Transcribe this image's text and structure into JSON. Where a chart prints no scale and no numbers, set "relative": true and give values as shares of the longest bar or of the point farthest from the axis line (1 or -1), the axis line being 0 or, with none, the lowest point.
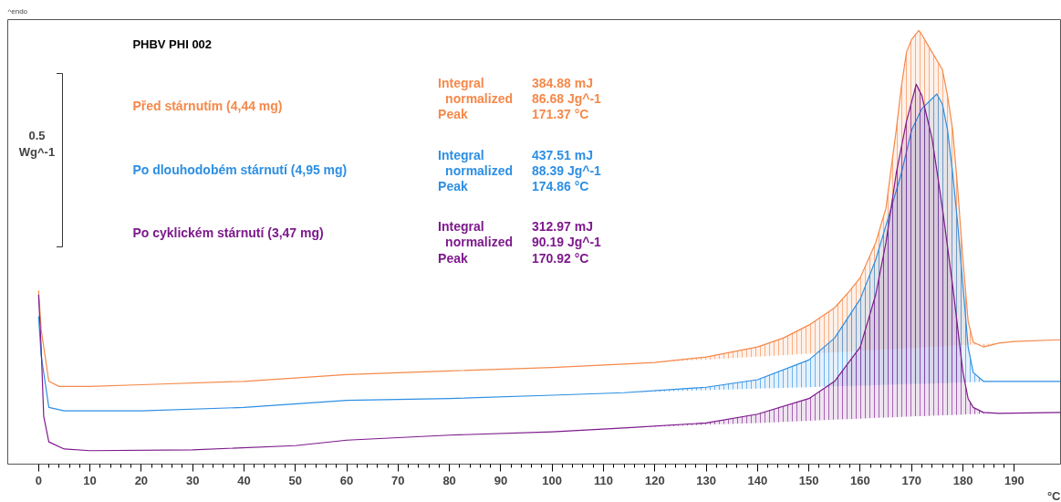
{
  "chart_data": {
    "type": "line",
    "relative": true,
    "title": "PHBV PHI 002",
    "xlabel": "°C",
    "xlim": [
      -6,
      199
    ],
    "xticks": [
      0,
      10,
      20,
      30,
      40,
      50,
      60,
      70,
      80,
      90,
      100,
      110,
      120,
      130,
      140,
      150,
      160,
      170,
      180,
      190
    ],
    "grid": false,
    "annotations": [
      "^endo",
      "0.5\nWg^-1",
      "Integral\t384.88 mJ\nnormalized\t86.68 Jg^-1\nPeak\t171.37 °C",
      "Integral\t437.51 mJ\nnormalized\t88.39 Jg^-1\nPeak\t174.86 °C",
      "Integral\t312.97 mJ\nnormalized\t90.19 Jg^-1\nPeak\t170.92 °C"
    ],
    "series": [
      {
        "name": "Před stárnutím (4,44 mg)",
        "color": "#f5894a",
        "x": [
          0,
          0.5,
          2,
          4,
          10,
          20,
          40,
          60,
          80,
          100,
          114,
          120,
          130,
          140,
          145,
          150,
          155,
          158,
          160,
          163,
          165,
          167,
          168,
          169,
          170,
          171.4,
          172,
          174,
          176,
          177,
          178,
          179,
          180,
          181,
          182,
          184,
          187,
          190,
          199
        ],
        "values": [
          0.381,
          0.289,
          0.165,
          0.153,
          0.153,
          0.157,
          0.165,
          0.181,
          0.19,
          0.198,
          0.206,
          0.21,
          0.223,
          0.247,
          0.268,
          0.299,
          0.34,
          0.381,
          0.412,
          0.495,
          0.577,
          0.763,
          0.866,
          0.948,
          0.979,
          1,
          0.99,
          0.948,
          0.907,
          0.845,
          0.763,
          0.619,
          0.454,
          0.309,
          0.258,
          0.247,
          0.256,
          0.26,
          0.264
        ],
        "lower": [
          null,
          null,
          null,
          null,
          null,
          null,
          null,
          null,
          null,
          null,
          0.206,
          0.21,
          0.217,
          0.224,
          0.227,
          0.231,
          0.234,
          0.236,
          0.238,
          0.24,
          0.241,
          0.242,
          0.243,
          0.244,
          0.244,
          0.245,
          0.246,
          0.247,
          0.248,
          0.249,
          0.25,
          0.25,
          0.251,
          0.252,
          0.252,
          0.254,
          0.256,
          null,
          null
        ],
        "upper": [
          null,
          null,
          null,
          null,
          null,
          null,
          null,
          null,
          null,
          null,
          0.206,
          0.21,
          0.223,
          0.247,
          0.268,
          0.299,
          0.34,
          0.381,
          0.412,
          0.495,
          0.577,
          0.763,
          0.866,
          0.948,
          0.979,
          1,
          0.99,
          0.948,
          0.907,
          0.845,
          0.763,
          0.619,
          0.454,
          0.309,
          0.258,
          0.247,
          0.256,
          null,
          null
        ]
      },
      {
        "name": "Po dlouhodobém stárnutí (4,95 mg)",
        "color": "#2d8fe3",
        "x": [
          0,
          0.5,
          2,
          5,
          20,
          40,
          60,
          80,
          100,
          114,
          130,
          140,
          150,
          155,
          160,
          163,
          165,
          168,
          170,
          172,
          174.9,
          176,
          177,
          178,
          179,
          180,
          181,
          182,
          184,
          187,
          199
        ],
        "values": [
          0.32,
          0.227,
          0.103,
          0.095,
          0.095,
          0.103,
          0.12,
          0.124,
          0.132,
          0.138,
          0.151,
          0.169,
          0.216,
          0.268,
          0.361,
          0.454,
          0.536,
          0.66,
          0.763,
          0.814,
          0.849,
          0.825,
          0.763,
          0.66,
          0.536,
          0.392,
          0.247,
          0.186,
          0.165,
          0.165,
          0.165
        ],
        "lower": [
          null,
          null,
          null,
          null,
          null,
          null,
          null,
          null,
          null,
          0.138,
          0.144,
          0.148,
          0.151,
          0.153,
          0.155,
          0.156,
          0.157,
          0.158,
          0.159,
          0.159,
          0.16,
          0.161,
          0.161,
          0.162,
          0.162,
          0.162,
          0.163,
          0.163,
          0.164,
          0.165,
          null
        ],
        "upper": [
          null,
          null,
          null,
          null,
          null,
          null,
          null,
          null,
          null,
          0.138,
          0.151,
          0.169,
          0.216,
          0.268,
          0.361,
          0.454,
          0.536,
          0.66,
          0.763,
          0.814,
          0.849,
          0.825,
          0.763,
          0.66,
          0.536,
          0.392,
          0.247,
          0.186,
          0.165,
          0.165,
          null
        ]
      },
      {
        "name": "Po cyklickém stárnutí (3,47 mg)",
        "color": "#7d1a8c",
        "x": [
          0,
          0.5,
          1,
          2,
          5,
          10,
          30,
          50,
          60,
          80,
          100,
          114,
          130,
          140,
          150,
          155,
          160,
          163,
          165,
          167,
          169,
          170.9,
          172,
          174,
          176,
          178,
          180,
          181,
          182,
          184,
          187,
          199
        ],
        "values": [
          0.371,
          0.247,
          0.082,
          0.021,
          0.004,
          0,
          0.002,
          0.012,
          0.025,
          0.037,
          0.045,
          0.054,
          0.066,
          0.087,
          0.124,
          0.165,
          0.247,
          0.371,
          0.495,
          0.66,
          0.784,
          0.872,
          0.845,
          0.742,
          0.577,
          0.392,
          0.186,
          0.124,
          0.103,
          0.091,
          0.089,
          0.091
        ],
        "lower": [
          null,
          null,
          null,
          null,
          null,
          null,
          null,
          null,
          null,
          null,
          null,
          0.054,
          0.062,
          0.066,
          0.071,
          0.074,
          0.076,
          0.078,
          0.079,
          0.08,
          0.081,
          0.082,
          0.082,
          0.083,
          0.084,
          0.085,
          0.086,
          0.087,
          0.087,
          0.088,
          0.089,
          null
        ],
        "upper": [
          null,
          null,
          null,
          null,
          null,
          null,
          null,
          null,
          null,
          null,
          null,
          0.054,
          0.066,
          0.087,
          0.124,
          0.165,
          0.247,
          0.371,
          0.495,
          0.66,
          0.784,
          0.872,
          0.845,
          0.742,
          0.577,
          0.392,
          0.186,
          0.124,
          0.103,
          0.091,
          0.089,
          null
        ]
      }
    ]
  }
}
